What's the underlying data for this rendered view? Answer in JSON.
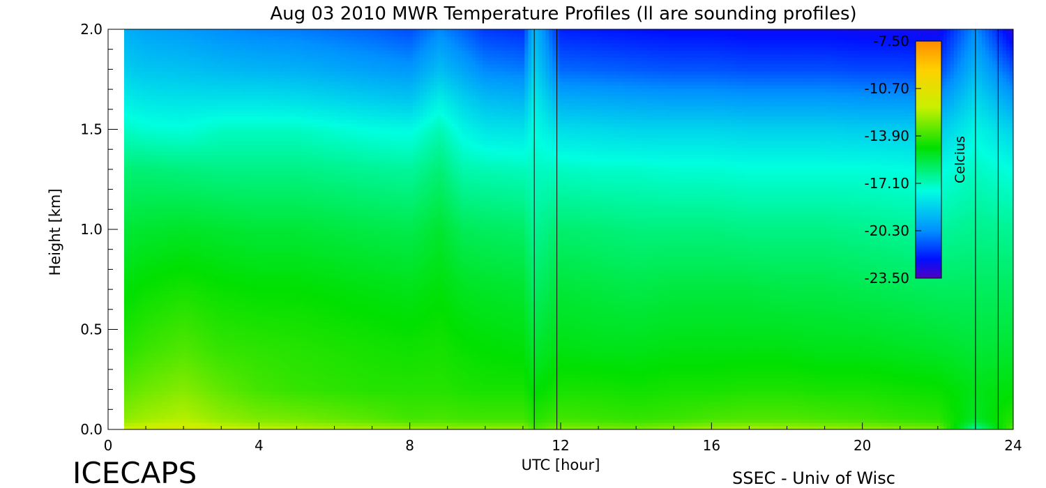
{
  "chart_data": {
    "type": "heatmap",
    "title": "Aug 03 2010 MWR Temperature Profiles (ll are sounding profiles)",
    "xlabel": "UTC [hour]",
    "ylabel": "Height [km]",
    "xlim": [
      0,
      24
    ],
    "ylim": [
      0,
      2.0
    ],
    "x_ticks": [
      0,
      4,
      8,
      12,
      16,
      20,
      24
    ],
    "x_tick_labels": [
      "0",
      "4",
      "8",
      "12",
      "16",
      "20",
      "24"
    ],
    "y_ticks": [
      0,
      0.5,
      1.0,
      1.5,
      2.0
    ],
    "y_tick_labels": [
      "0.0",
      "0.5",
      "1.0",
      "1.5",
      "2.0"
    ],
    "sounding_profile_hours": [
      11.3,
      11.9,
      23.0,
      23.6
    ],
    "grid": false,
    "colorbar": {
      "label": "Celcius",
      "min": -23.5,
      "max": -7.5,
      "tick_values": [
        -7.5,
        -10.7,
        -13.9,
        -17.1,
        -20.3,
        -23.5
      ],
      "tick_labels": [
        "-7.50",
        "-10.70",
        "-13.90",
        "-17.10",
        "-20.30",
        "-23.50"
      ],
      "placement": "top-right"
    },
    "grid_x_hours": [
      0.4,
      1.0,
      2.0,
      3.0,
      4.0,
      5.0,
      6.0,
      7.0,
      8.0,
      8.8,
      9.4,
      10.0,
      11.0,
      11.3,
      12.0,
      13.0,
      14.0,
      15.0,
      16.0,
      17.0,
      18.0,
      19.0,
      20.0,
      21.0,
      22.0,
      23.0,
      24.0
    ],
    "grid_y_km": [
      0.0,
      0.05,
      0.2,
      0.4,
      0.7,
      1.0,
      1.3,
      1.5,
      1.65,
      1.8,
      2.0
    ],
    "temperature_c": [
      [
        -11.8,
        -12.8,
        -13.5,
        -14.2,
        -14.8,
        -15.4,
        -16.2,
        -17.2,
        -18.0,
        -18.8,
        -19.5
      ],
      [
        -11.6,
        -12.5,
        -13.2,
        -13.9,
        -14.6,
        -15.3,
        -16.2,
        -17.4,
        -18.2,
        -19.0,
        -19.8
      ],
      [
        -11.4,
        -12.2,
        -12.9,
        -13.6,
        -14.4,
        -15.2,
        -16.3,
        -17.5,
        -18.3,
        -19.1,
        -20.0
      ],
      [
        -11.8,
        -12.7,
        -13.4,
        -14.0,
        -14.6,
        -15.3,
        -16.4,
        -17.2,
        -18.3,
        -19.3,
        -20.3
      ],
      [
        -12.0,
        -13.0,
        -13.8,
        -14.1,
        -14.7,
        -15.4,
        -16.4,
        -17.2,
        -18.3,
        -19.4,
        -20.5
      ],
      [
        -12.1,
        -13.1,
        -14.0,
        -14.2,
        -14.7,
        -15.4,
        -16.4,
        -17.2,
        -18.4,
        -19.5,
        -20.6
      ],
      [
        -12.2,
        -13.3,
        -14.1,
        -14.3,
        -14.8,
        -15.5,
        -16.5,
        -17.4,
        -18.6,
        -19.7,
        -20.8
      ],
      [
        -12.3,
        -13.5,
        -14.2,
        -14.4,
        -14.9,
        -15.6,
        -16.6,
        -17.6,
        -18.8,
        -19.9,
        -21.0
      ],
      [
        -12.4,
        -13.8,
        -14.2,
        -14.5,
        -15.0,
        -15.7,
        -16.7,
        -17.7,
        -19.0,
        -20.1,
        -21.3
      ],
      [
        -12.5,
        -13.7,
        -14.2,
        -14.4,
        -14.8,
        -15.3,
        -16.2,
        -17.0,
        -18.0,
        -19.2,
        -20.4
      ],
      [
        -12.6,
        -13.8,
        -14.3,
        -14.6,
        -15.1,
        -15.8,
        -16.9,
        -17.8,
        -18.7,
        -19.8,
        -21.0
      ],
      [
        -12.6,
        -13.8,
        -14.4,
        -14.7,
        -15.2,
        -15.9,
        -17.0,
        -18.2,
        -19.2,
        -20.4,
        -21.6
      ],
      [
        -12.6,
        -13.8,
        -14.4,
        -14.8,
        -15.3,
        -16.0,
        -17.1,
        -18.3,
        -19.4,
        -20.6,
        -21.8
      ],
      [
        -13.6,
        -14.2,
        -14.8,
        -15.3,
        -16.0,
        -16.6,
        -17.2,
        -17.6,
        -18.0,
        -18.6,
        -19.3
      ],
      [
        -12.8,
        -13.8,
        -14.4,
        -14.9,
        -15.4,
        -16.1,
        -17.2,
        -18.4,
        -19.6,
        -20.9,
        -22.0
      ],
      [
        -12.9,
        -13.9,
        -14.4,
        -15.0,
        -15.5,
        -16.2,
        -17.3,
        -18.5,
        -19.7,
        -21.0,
        -22.1
      ],
      [
        -13.0,
        -14.0,
        -14.5,
        -15.0,
        -15.6,
        -16.3,
        -17.3,
        -18.6,
        -19.8,
        -21.1,
        -22.2
      ],
      [
        -12.7,
        -13.9,
        -14.4,
        -14.9,
        -15.5,
        -16.3,
        -17.4,
        -18.6,
        -19.9,
        -21.2,
        -22.3
      ],
      [
        -12.4,
        -13.7,
        -14.4,
        -14.9,
        -15.5,
        -16.3,
        -17.4,
        -18.6,
        -19.9,
        -21.2,
        -22.3
      ],
      [
        -12.3,
        -13.6,
        -14.3,
        -14.9,
        -15.5,
        -16.4,
        -17.5,
        -18.7,
        -20.0,
        -21.3,
        -22.4
      ],
      [
        -12.4,
        -13.6,
        -14.3,
        -14.9,
        -15.6,
        -16.4,
        -17.5,
        -18.7,
        -20.0,
        -21.3,
        -22.4
      ],
      [
        -12.5,
        -13.7,
        -14.4,
        -15.0,
        -15.6,
        -16.4,
        -17.5,
        -18.7,
        -20.0,
        -21.3,
        -22.4
      ],
      [
        -12.6,
        -13.8,
        -14.4,
        -15.0,
        -15.7,
        -16.5,
        -17.5,
        -18.8,
        -20.1,
        -21.4,
        -22.5
      ],
      [
        -12.8,
        -14.0,
        -14.5,
        -15.1,
        -15.8,
        -16.6,
        -17.6,
        -18.8,
        -20.1,
        -21.4,
        -22.5
      ],
      [
        -13.0,
        -14.1,
        -14.6,
        -15.2,
        -15.9,
        -16.7,
        -17.7,
        -18.9,
        -20.2,
        -21.5,
        -22.6
      ],
      [
        -16.8,
        -15.2,
        -15.0,
        -15.4,
        -15.9,
        -16.5,
        -17.2,
        -17.8,
        -18.5,
        -19.3,
        -20.3
      ],
      [
        -13.5,
        -14.2,
        -14.8,
        -15.3,
        -15.9,
        -16.6,
        -17.6,
        -18.7,
        -19.9,
        -21.2,
        -22.9
      ]
    ]
  },
  "footer": {
    "logo_text": "ICECAPS",
    "credit_text": "SSEC - Univ of Wisc"
  }
}
